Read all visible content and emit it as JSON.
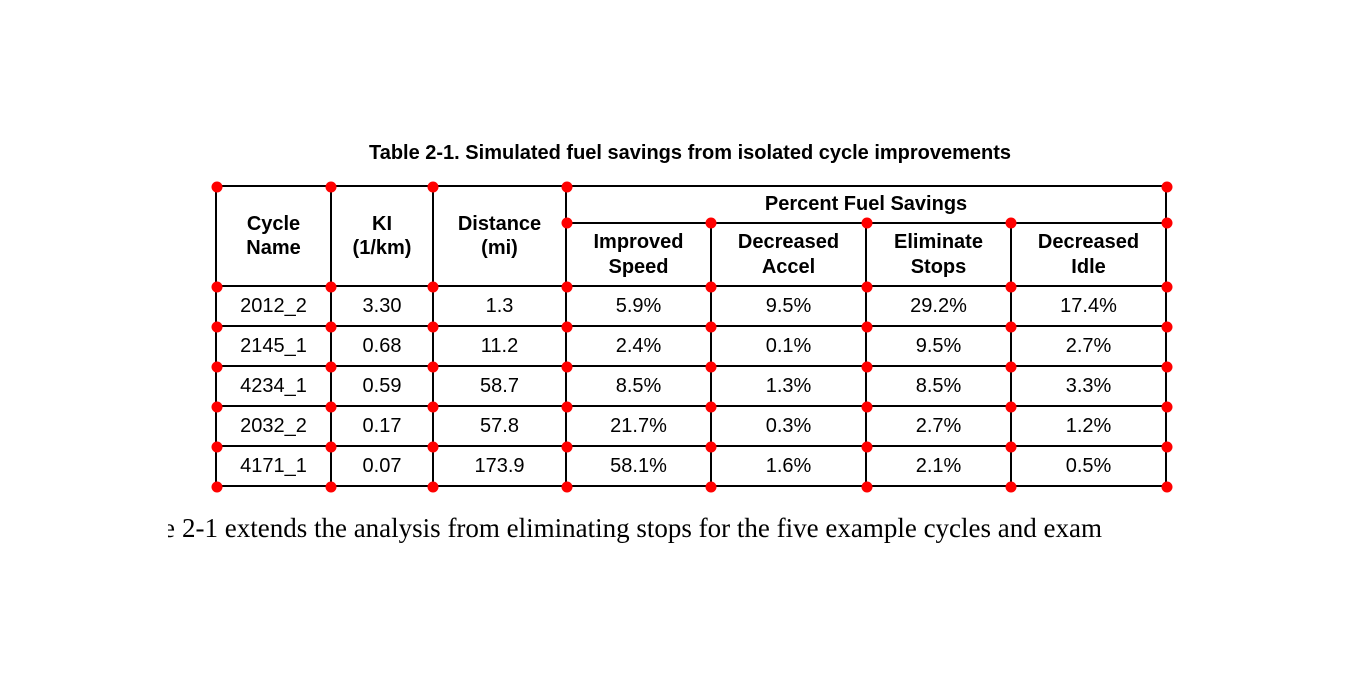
{
  "document": {
    "table_title": "Table 2-1. Simulated fuel savings from isolated cycle improvements",
    "fragment": "e",
    "body_text": "2-1 extends the analysis from eliminating stops for the five example cycles and exam"
  },
  "table": {
    "group_header": "Percent Fuel Savings",
    "headers": [
      "Cycle\nName",
      "KI\n(1/km)",
      "Distance\n(mi)",
      "Improved\nSpeed",
      "Decreased\nAccel",
      "Eliminate\nStops",
      "Decreased\nIdle"
    ],
    "rows": [
      [
        "2012_2",
        "3.30",
        "1.3",
        "5.9%",
        "9.5%",
        "29.2%",
        "17.4%"
      ],
      [
        "2145_1",
        "0.68",
        "11.2",
        "2.4%",
        "0.1%",
        "9.5%",
        "2.7%"
      ],
      [
        "4234_1",
        "0.59",
        "58.7",
        "8.5%",
        "1.3%",
        "8.5%",
        "3.3%"
      ],
      [
        "2032_2",
        "0.17",
        "57.8",
        "21.7%",
        "0.3%",
        "2.7%",
        "1.2%"
      ],
      [
        "4171_1",
        "0.07",
        "173.9",
        "58.1%",
        "1.6%",
        "2.1%",
        "0.5%"
      ]
    ]
  },
  "annotations": {
    "marker_color": "#ff0000"
  },
  "chart_data": {
    "type": "table",
    "title": "Table 2-1. Simulated fuel savings from isolated cycle improvements",
    "columns": [
      "Cycle Name",
      "KI (1/km)",
      "Distance (mi)",
      "Improved Speed",
      "Decreased Accel",
      "Eliminate Stops",
      "Decreased Idle"
    ],
    "column_groups": [
      {
        "label": "Percent Fuel Savings",
        "columns": [
          "Improved Speed",
          "Decreased Accel",
          "Eliminate Stops",
          "Decreased Idle"
        ]
      }
    ],
    "rows": [
      [
        "2012_2",
        3.3,
        1.3,
        "5.9%",
        "9.5%",
        "29.2%",
        "17.4%"
      ],
      [
        "2145_1",
        0.68,
        11.2,
        "2.4%",
        "0.1%",
        "9.5%",
        "2.7%"
      ],
      [
        "4234_1",
        0.59,
        58.7,
        "8.5%",
        "1.3%",
        "8.5%",
        "3.3%"
      ],
      [
        "2032_2",
        0.17,
        57.8,
        "21.7%",
        "0.3%",
        "2.7%",
        "1.2%"
      ],
      [
        "4171_1",
        0.07,
        173.9,
        "58.1%",
        "1.6%",
        "2.1%",
        "0.5%"
      ]
    ]
  }
}
